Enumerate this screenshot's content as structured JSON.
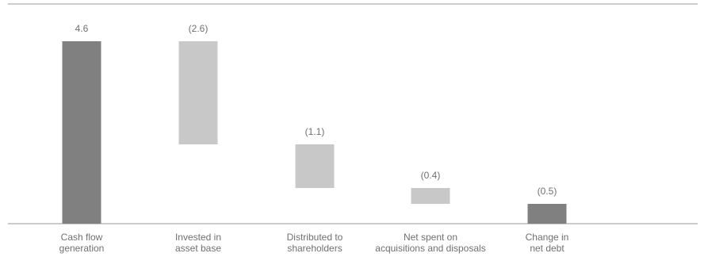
{
  "chart_data": {
    "type": "waterfall",
    "title": "",
    "xlabel": "",
    "ylabel": "",
    "ylim": [
      0,
      4.9
    ],
    "grid": false,
    "categories": [
      [
        "Cash flow",
        "generation"
      ],
      [
        "Invested in",
        "asset base"
      ],
      [
        "Distributed to",
        "shareholders"
      ],
      [
        "Net spent on",
        "acquisitions and disposals"
      ],
      [
        "Change in",
        "net debt"
      ]
    ],
    "values": [
      4.6,
      -2.6,
      -1.1,
      -0.4,
      -0.5
    ],
    "value_labels": [
      "4.6",
      "(2.6)",
      "(1.1)",
      "(0.4)",
      "(0.5)"
    ],
    "bar_kinds": [
      "total",
      "step",
      "step",
      "step",
      "total"
    ],
    "colors": {
      "total": "#808080",
      "step": "#c8c8c8",
      "axis": "#9a9a9a",
      "text": "#707070"
    }
  }
}
